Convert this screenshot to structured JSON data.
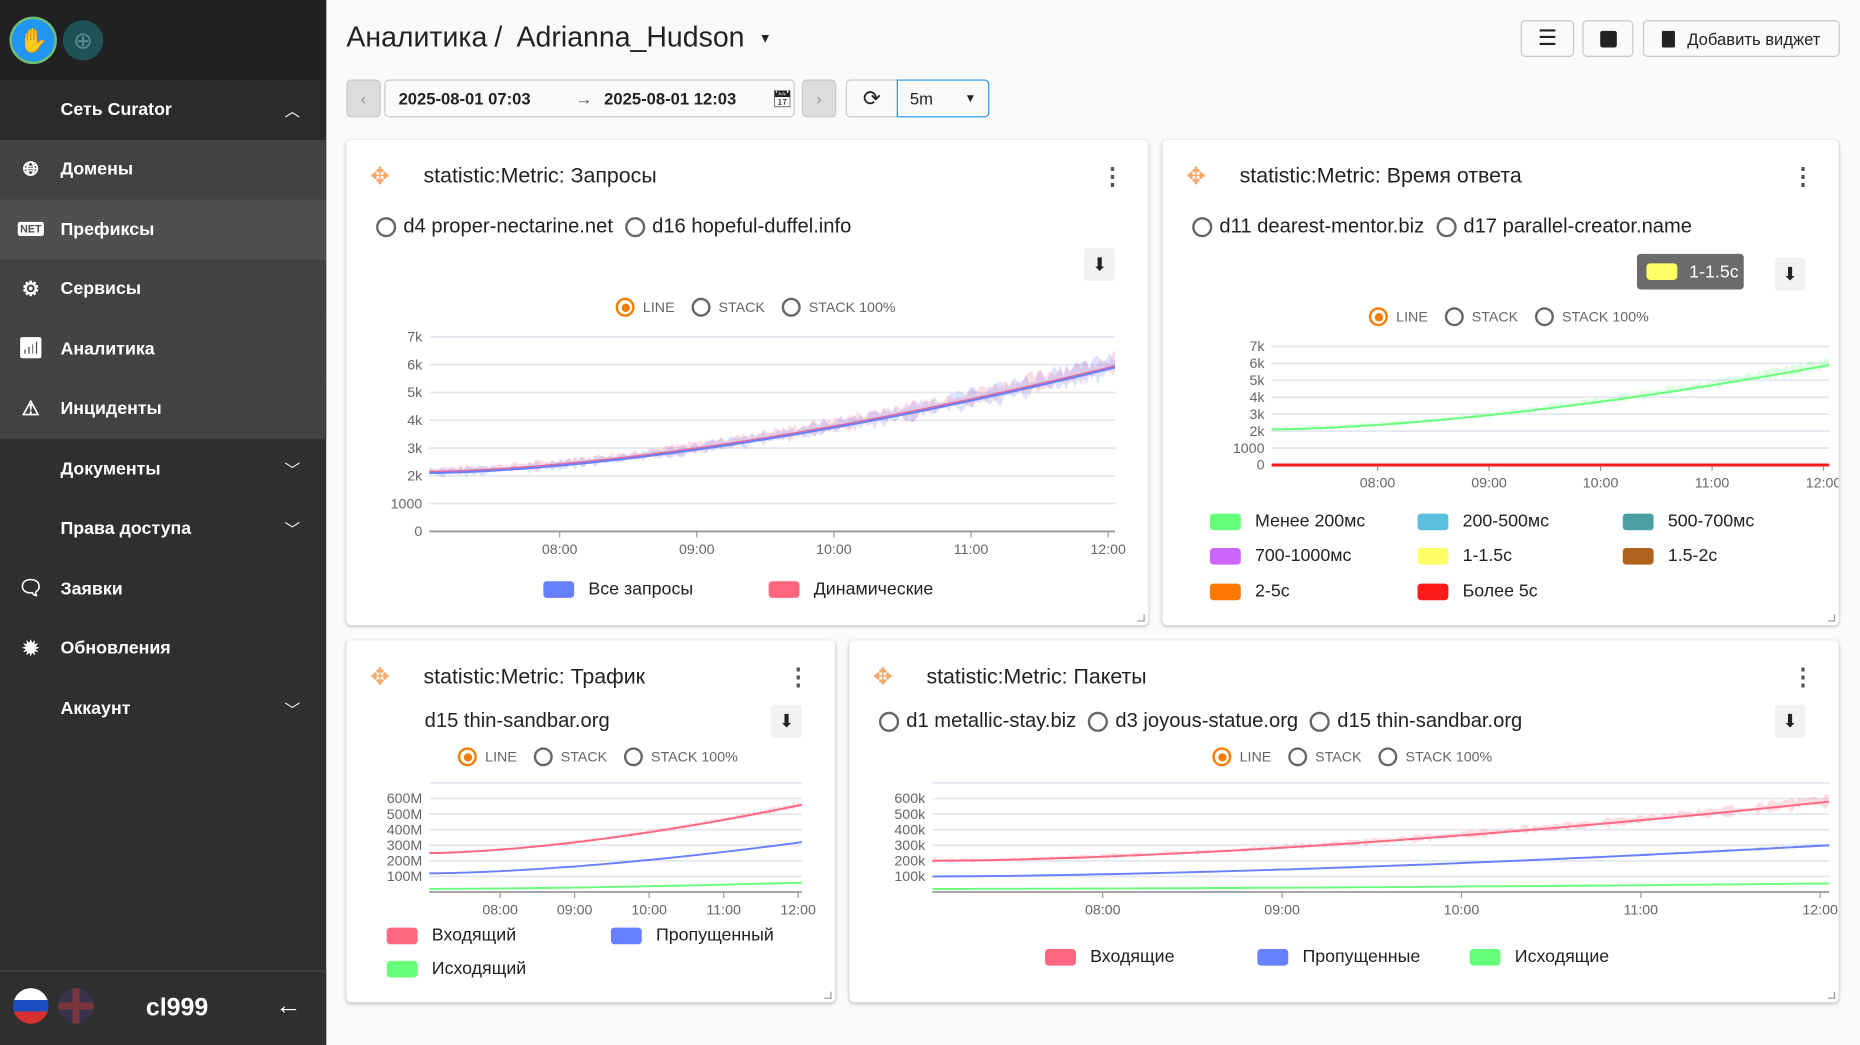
{
  "sidebar": {
    "network_label": "Сеть Curator",
    "items": [
      {
        "label": "Домены",
        "icon": "globe-icon"
      },
      {
        "label": "Префиксы",
        "icon": "net-icon"
      },
      {
        "label": "Сервисы",
        "icon": "gears-icon"
      },
      {
        "label": "Аналитика",
        "icon": "chart-icon"
      },
      {
        "label": "Инциденты",
        "icon": "warning-icon"
      },
      {
        "label": "Документы"
      },
      {
        "label": "Права доступа"
      },
      {
        "label": "Заявки",
        "icon": "chat-icon"
      },
      {
        "label": "Обновления",
        "icon": "update-badge-icon"
      },
      {
        "label": "Аккаунт"
      }
    ],
    "net_badge": "NET",
    "user": "cl999"
  },
  "header": {
    "section": "Аналитика",
    "separator": "/",
    "dashboard": "Adrianna_Hudson",
    "add_widget": "Добавить виджет"
  },
  "toolbar": {
    "from": "2025-08-01 07:03",
    "arrow": "→",
    "to": "2025-08-01 12:03",
    "interval": "5m"
  },
  "chart_types": [
    "LINE",
    "STACK",
    "STACK 100%"
  ],
  "colors": {
    "accent": "#f57c00",
    "move": "#f6a96b"
  },
  "tooltip": {
    "label": "1-1.5с",
    "color": "#ffff66"
  },
  "chart_data": [
    {
      "type": "line",
      "title": "statistic:Metric: Запросы",
      "domains": [
        "d4 proper-nectarine.net",
        "d16 hopeful-duffel.info"
      ],
      "x_ticks": [
        "08:00",
        "09:00",
        "10:00",
        "11:00",
        "12:00"
      ],
      "x_range": [
        "07:03",
        "12:03"
      ],
      "ylim": [
        0,
        7000
      ],
      "y_ticks": [
        0,
        1000,
        2000,
        3000,
        4000,
        5000,
        6000,
        7000
      ],
      "y_tick_labels": [
        "0",
        "1000",
        "2k",
        "3k",
        "4k",
        "5k",
        "6k",
        "7k"
      ],
      "series": [
        {
          "name": "Все запросы",
          "color": "#6680ff",
          "start": 2100,
          "end": 5900,
          "noise": 0.08
        },
        {
          "name": "Динамические",
          "color": "#ff6680",
          "start": 2150,
          "end": 5950,
          "noise": 0.08
        }
      ]
    },
    {
      "type": "line",
      "title": "statistic:Metric: Время ответа",
      "domains": [
        "d11 dearest-mentor.biz",
        "d17 parallel-creator.name"
      ],
      "x_ticks": [
        "08:00",
        "09:00",
        "10:00",
        "11:00",
        "12:00"
      ],
      "x_range": [
        "07:03",
        "12:03"
      ],
      "ylim": [
        0,
        7000
      ],
      "y_ticks": [
        0,
        1000,
        2000,
        3000,
        4000,
        5000,
        6000,
        7000
      ],
      "y_tick_labels": [
        "0",
        "1000",
        "2k",
        "3k",
        "4k",
        "5k",
        "6k",
        "7k"
      ],
      "series": [
        {
          "name": "Менее 200мс",
          "color": "#66ff7a",
          "start": 2100,
          "end": 5900,
          "noise": 0.07
        },
        {
          "name": "200-500мс",
          "color": "#5bc0de",
          "start": 0,
          "end": 0,
          "noise": 0
        },
        {
          "name": "500-700мс",
          "color": "#4a9fa5",
          "start": 0,
          "end": 0,
          "noise": 0
        },
        {
          "name": "700-1000мс",
          "color": "#cc66ff",
          "start": 0,
          "end": 0,
          "noise": 0
        },
        {
          "name": "1-1.5с",
          "color": "#ffff66",
          "start": 0,
          "end": 0,
          "noise": 0
        },
        {
          "name": "1.5-2с",
          "color": "#b0621d",
          "start": 0,
          "end": 0,
          "noise": 0
        },
        {
          "name": "2-5с",
          "color": "#ff7700",
          "start": 0,
          "end": 0,
          "noise": 0
        },
        {
          "name": "Более 5с",
          "color": "#ff1a1a",
          "start": 0,
          "end": 0,
          "noise": 0
        }
      ]
    },
    {
      "type": "line",
      "title": "statistic:Metric: Трафик",
      "domains": [
        "d15 thin-sandbar.org"
      ],
      "x_ticks": [
        "08:00",
        "09:00",
        "10:00",
        "11:00",
        "12:00"
      ],
      "x_range": [
        "07:03",
        "12:03"
      ],
      "ylim": [
        0,
        700
      ],
      "y_ticks": [
        100,
        200,
        300,
        400,
        500,
        600
      ],
      "y_tick_labels": [
        "100M",
        "200M",
        "300M",
        "400M",
        "500M",
        "600M"
      ],
      "series": [
        {
          "name": "Входящий",
          "color": "#ff6680",
          "start": 250,
          "end": 560,
          "noise": 0.04
        },
        {
          "name": "Пропущенный",
          "color": "#6680ff",
          "start": 120,
          "end": 320,
          "noise": 0.02
        },
        {
          "name": "Исходящий",
          "color": "#66ff7a",
          "start": 20,
          "end": 60,
          "noise": 0.0
        }
      ]
    },
    {
      "type": "line",
      "title": "statistic:Metric: Пакеты",
      "domains": [
        "d1 metallic-stay.biz",
        "d3 joyous-statue.org",
        "d15 thin-sandbar.org"
      ],
      "x_ticks": [
        "08:00",
        "09:00",
        "10:00",
        "11:00",
        "12:00"
      ],
      "x_range": [
        "07:03",
        "12:03"
      ],
      "ylim": [
        0,
        700000
      ],
      "y_ticks": [
        100000,
        200000,
        300000,
        400000,
        500000,
        600000
      ],
      "y_tick_labels": [
        "100k",
        "200k",
        "300k",
        "400k",
        "500k",
        "600k"
      ],
      "series": [
        {
          "name": "Входящие",
          "color": "#ff6680",
          "start": 200000,
          "end": 580000,
          "noise": 0.07
        },
        {
          "name": "Пропущенные",
          "color": "#6680ff",
          "start": 100000,
          "end": 300000,
          "noise": 0.04
        },
        {
          "name": "Исходящие",
          "color": "#66ff7a",
          "start": 20000,
          "end": 55000,
          "noise": 0.0
        }
      ]
    }
  ]
}
